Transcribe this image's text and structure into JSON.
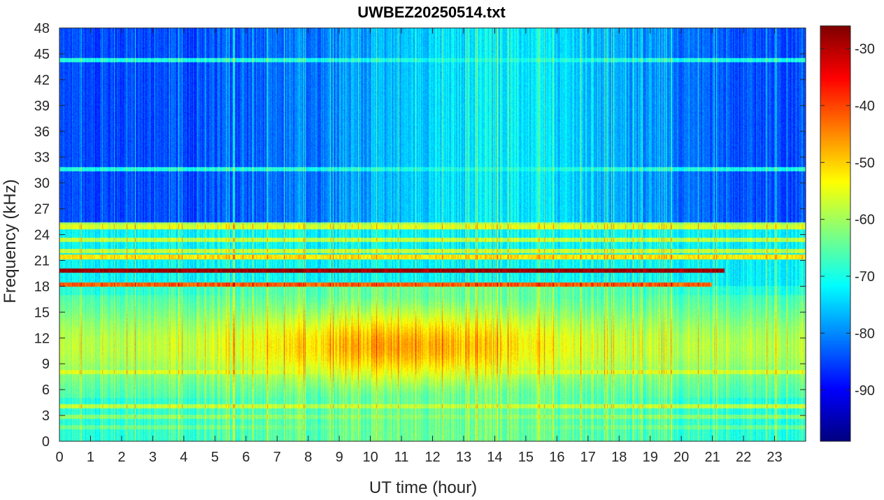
{
  "chart_data": {
    "type": "heatmap",
    "title": "UWBEZ20250514.txt",
    "xlabel": "UT time (hour)",
    "ylabel": "Frequency (kHz)",
    "xlim": [
      0,
      24
    ],
    "ylim": [
      0,
      48
    ],
    "x_ticks": [
      "0",
      "1",
      "2",
      "3",
      "4",
      "5",
      "6",
      "7",
      "8",
      "9",
      "10",
      "11",
      "12",
      "13",
      "14",
      "15",
      "16",
      "17",
      "18",
      "19",
      "20",
      "21",
      "22",
      "23"
    ],
    "y_ticks": [
      "0",
      "3",
      "6",
      "9",
      "12",
      "15",
      "18",
      "21",
      "24",
      "27",
      "30",
      "33",
      "36",
      "39",
      "42",
      "45",
      "48"
    ],
    "colorbar": {
      "colormap": "jet",
      "range": [
        -99,
        -26
      ],
      "ticks": [
        "-30",
        "-40",
        "-50",
        "-60",
        "-70",
        "-80",
        "-90"
      ],
      "tick_values": [
        -30,
        -40,
        -50,
        -60,
        -70,
        -80,
        -90
      ]
    },
    "background_level": -85,
    "daytime_hump": {
      "center_hour": 11.0,
      "spread_hours": 4.5,
      "freq_range_khz": [
        5,
        17
      ],
      "peak_level": -47
    },
    "bands": [
      {
        "freq_khz": 19.8,
        "hour_range": [
          0,
          21.4
        ],
        "level": -28
      },
      {
        "freq_khz": 18.2,
        "hour_range": [
          0,
          21.0
        ],
        "level": -42
      },
      {
        "freq_khz": 21.4,
        "hour_range": [
          0,
          24
        ],
        "level": -52
      },
      {
        "freq_khz": 22.1,
        "hour_range": [
          0,
          24
        ],
        "level": -58
      },
      {
        "freq_khz": 23.4,
        "hour_range": [
          0,
          24
        ],
        "level": -58
      },
      {
        "freq_khz": 24.9,
        "hour_range": [
          0,
          24
        ],
        "level": -56
      },
      {
        "freq_khz": 25.2,
        "hour_range": [
          0,
          24
        ],
        "level": -60
      },
      {
        "freq_khz": 31.6,
        "hour_range": [
          0,
          24
        ],
        "level": -70
      },
      {
        "freq_khz": 44.3,
        "hour_range": [
          0,
          24
        ],
        "level": -70
      },
      {
        "freq_khz": 4.0,
        "hour_range": [
          0,
          24
        ],
        "level": -58
      },
      {
        "freq_khz": 2.8,
        "hour_range": [
          0,
          24
        ],
        "level": -62
      },
      {
        "freq_khz": 1.6,
        "hour_range": [
          0,
          24
        ],
        "level": -64
      },
      {
        "freq_khz": 0.8,
        "hour_range": [
          0,
          24
        ],
        "level": -72
      },
      {
        "freq_khz": 8.0,
        "hour_range": [
          0,
          24
        ],
        "level": -56
      }
    ]
  }
}
